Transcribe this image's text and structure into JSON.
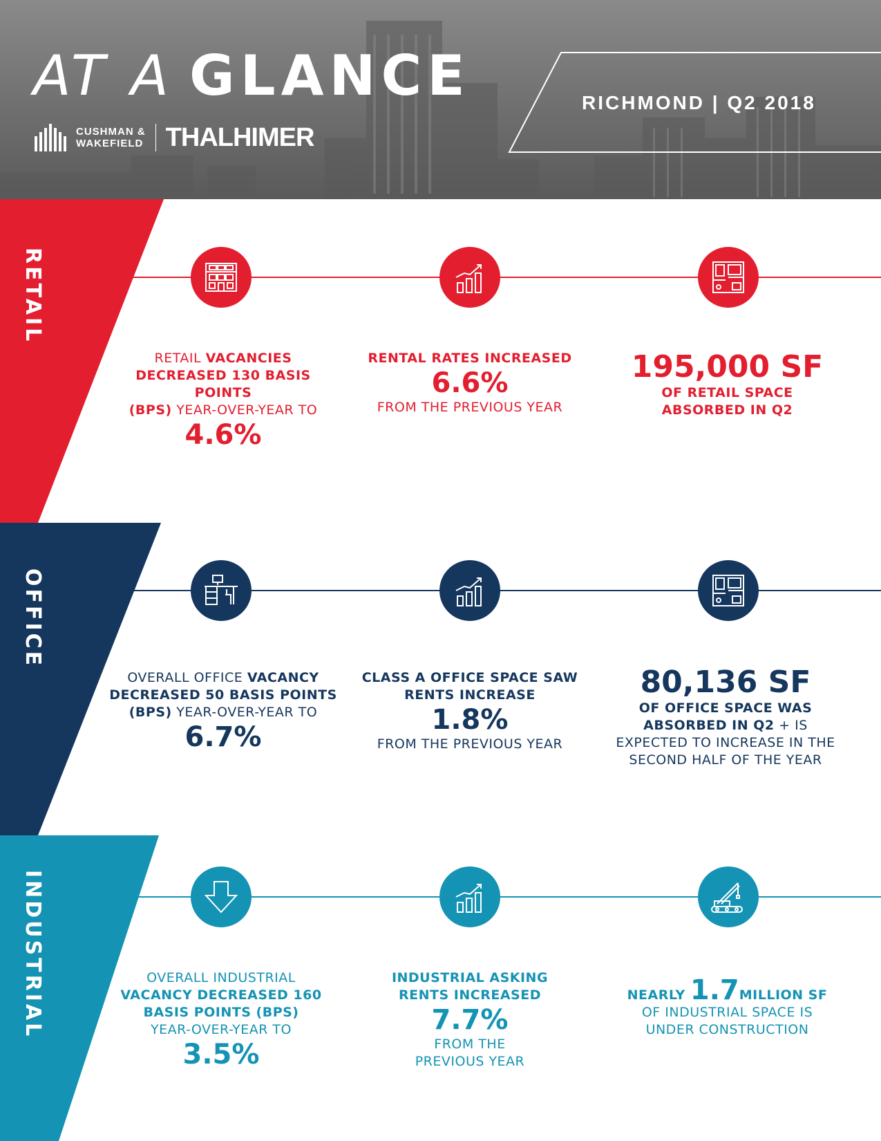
{
  "header": {
    "title_light": "AT A",
    "title_bold": "GLANCE",
    "logo_line1": "CUSHMAN &",
    "logo_line2": "WAKEFIELD",
    "logo_partner": "THALHIMER",
    "market_label": "RICHMOND | Q2 2018"
  },
  "colors": {
    "retail": "#e31e2f",
    "office": "#15375d",
    "industrial": "#1493b4"
  },
  "retail": {
    "label": "RETAIL",
    "icons": [
      "storefront-icon",
      "bar-chart-growth-icon",
      "floor-plan-icon"
    ],
    "stat1": {
      "pre": "RETAIL ",
      "bold1": "VACANCIES",
      "bold2": "DECREASED 130 BASIS POINTS",
      "bold3": "(BPS)",
      "post": " YEAR-OVER-YEAR TO",
      "value": "4.6%"
    },
    "stat2": {
      "bold": "RENTAL RATES INCREASED",
      "value": "6.6%",
      "post": "FROM THE PREVIOUS YEAR"
    },
    "stat3": {
      "value": "195,000 SF",
      "line1": "OF RETAIL SPACE",
      "line2": "ABSORBED IN Q2"
    }
  },
  "office": {
    "label": "OFFICE",
    "icons": [
      "office-desk-icon",
      "bar-chart-growth-icon",
      "floor-plan-icon"
    ],
    "stat1": {
      "pre": "OVERALL OFFICE ",
      "bold1": "VACANCY",
      "bold2": "DECREASED 50 BASIS POINTS",
      "bold3": "(BPS)",
      "post": " YEAR-OVER-YEAR TO",
      "value": "6.7%"
    },
    "stat2": {
      "bold1": "CLASS A OFFICE SPACE SAW",
      "bold2": "RENTS INCREASE",
      "value": "1.8%",
      "post": "FROM THE PREVIOUS YEAR"
    },
    "stat3": {
      "value": "80,136 SF",
      "bold1": "OF OFFICE SPACE WAS",
      "bold2": "ABSORBED IN Q2",
      "tail": " + IS",
      "line3": "EXPECTED TO INCREASE IN THE",
      "line4": "SECOND HALF OF THE YEAR"
    }
  },
  "industrial": {
    "label": "INDUSTRIAL",
    "icons": [
      "down-arrow-icon",
      "bar-chart-growth-icon",
      "crane-icon"
    ],
    "stat1": {
      "line1": "OVERALL INDUSTRIAL",
      "bold1": "VACANCY DECREASED 160",
      "bold2": "BASIS POINTS (BPS)",
      "line4": "YEAR-OVER-YEAR TO",
      "value": "3.5%"
    },
    "stat2": {
      "bold1": "INDUSTRIAL ASKING",
      "bold2": "RENTS INCREASED",
      "value": "7.7%",
      "line1": "FROM THE",
      "line2": "PREVIOUS YEAR"
    },
    "stat3": {
      "pre": "NEARLY ",
      "value": "1.7",
      "post": "MILLION SF",
      "line2": "OF INDUSTRIAL SPACE IS",
      "line3": "UNDER CONSTRUCTION"
    }
  }
}
